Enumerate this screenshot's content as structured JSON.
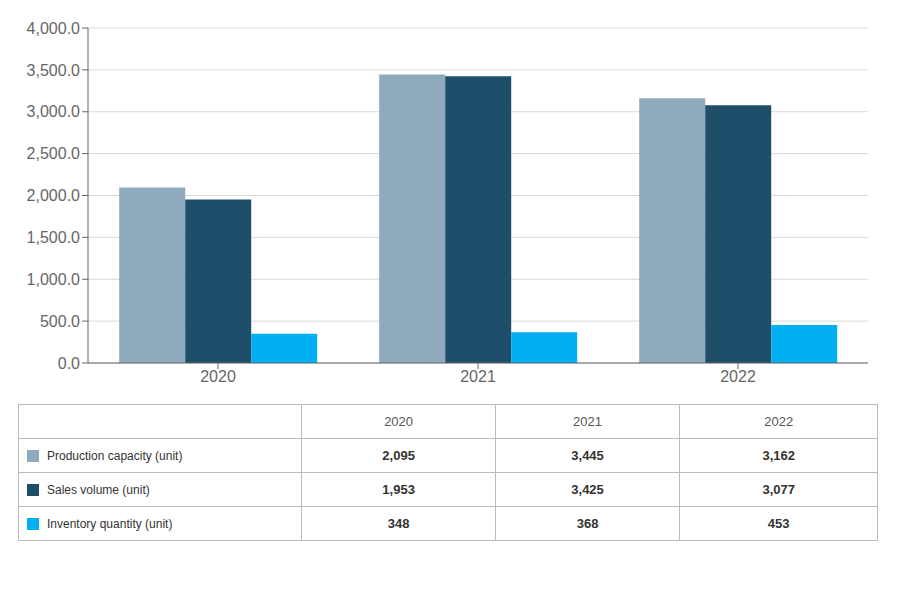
{
  "chart_data": {
    "type": "bar",
    "categories": [
      "2020",
      "2021",
      "2022"
    ],
    "series": [
      {
        "name": "Production capacity (unit)",
        "color": "#8faabd",
        "values": [
          2095,
          3445,
          3162
        ],
        "value_labels": [
          "2,095",
          "3,445",
          "3,162"
        ]
      },
      {
        "name": "Sales volume (unit)",
        "color": "#1f4e6b",
        "values": [
          1953,
          3425,
          3077
        ],
        "value_labels": [
          "1,953",
          "3,425",
          "3,077"
        ]
      },
      {
        "name": "Inventory quantity (unit)",
        "color": "#00b0f0",
        "values": [
          348,
          368,
          453
        ],
        "value_labels": [
          "348",
          "368",
          "453"
        ]
      }
    ],
    "ylim": [
      0,
      4000
    ],
    "yticks": [
      {
        "value": 0,
        "label": "0.0"
      },
      {
        "value": 500,
        "label": "500.0"
      },
      {
        "value": 1000,
        "label": "1,000.0"
      },
      {
        "value": 1500,
        "label": "1,500.0"
      },
      {
        "value": 2000,
        "label": "2,000.0"
      },
      {
        "value": 2500,
        "label": "2,500.0"
      },
      {
        "value": 3000,
        "label": "3,000.0"
      },
      {
        "value": 3500,
        "label": "3,500.0"
      },
      {
        "value": 4000,
        "label": "4,000.0"
      }
    ],
    "grid": true
  }
}
